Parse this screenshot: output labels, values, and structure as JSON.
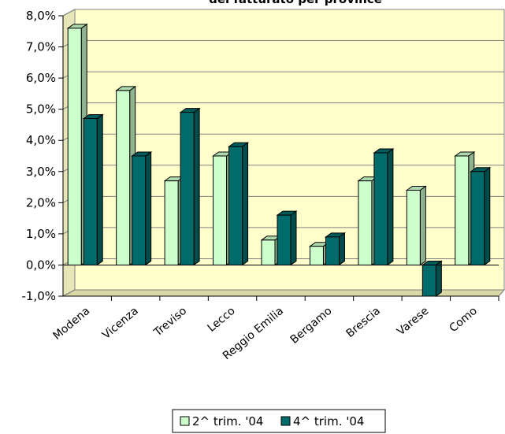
{
  "chart_data": {
    "type": "bar",
    "title": "del fatturato per province",
    "categories": [
      "Modena",
      "Vicenza",
      "Treviso",
      "Lecco",
      "Reggio Emilia",
      "Bergamo",
      "Brescia",
      "Varese",
      "Como"
    ],
    "series": [
      {
        "name": "2^ trim. '04",
        "values": [
          7.6,
          5.6,
          2.7,
          3.5,
          0.8,
          0.6,
          2.7,
          2.4,
          3.5
        ],
        "color": "#ccffcc"
      },
      {
        "name": "4^ trim. '04",
        "values": [
          4.7,
          3.5,
          4.9,
          3.8,
          1.6,
          0.9,
          3.6,
          -1.0,
          3.0
        ],
        "color": "#006b6b"
      }
    ],
    "ylim": [
      -1,
      8
    ],
    "yticks": [
      "-1,0%",
      "0,0%",
      "1,0%",
      "2,0%",
      "3,0%",
      "4,0%",
      "5,0%",
      "6,0%",
      "7,0%",
      "8,0%"
    ],
    "grid": true,
    "legend_position": "bottom",
    "plot_background": "#ffffcc"
  }
}
